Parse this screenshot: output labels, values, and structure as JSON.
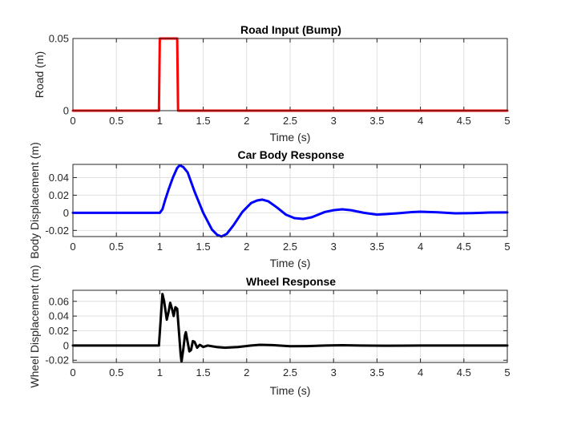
{
  "figure": {
    "background": "#ffffff"
  },
  "chart_data": [
    {
      "type": "line",
      "title": "Road Input (Bump)",
      "xlabel": "Time (s)",
      "ylabel": "Road (m)",
      "xlim": [
        0,
        5
      ],
      "ylim": [
        0,
        0.05
      ],
      "xticks": [
        "0",
        "0.5",
        "1",
        "1.5",
        "2",
        "2.5",
        "3",
        "3.5",
        "4",
        "4.5",
        "5"
      ],
      "yticks": [
        "0",
        "0.05"
      ],
      "grid": true,
      "series": [
        {
          "color": "#ff0000",
          "x": [
            0,
            0.99,
            1.0,
            1.2,
            1.21,
            5
          ],
          "y": [
            0,
            0,
            0.05,
            0.05,
            0,
            0
          ]
        }
      ]
    },
    {
      "type": "line",
      "title": "Car Body Response",
      "xlabel": "Time (s)",
      "ylabel": "Body Displacement (m)",
      "xlim": [
        0,
        5
      ],
      "ylim": [
        -0.027,
        0.055
      ],
      "xticks": [
        "0",
        "0.5",
        "1",
        "1.5",
        "2",
        "2.5",
        "3",
        "3.5",
        "4",
        "4.5",
        "5"
      ],
      "yticks": [
        "-0.02",
        "0",
        "0.02",
        "0.04"
      ],
      "grid": true,
      "series": [
        {
          "color": "#0000ff",
          "x": [
            0,
            1.0,
            1.03,
            1.06,
            1.1,
            1.15,
            1.2,
            1.23,
            1.27,
            1.32,
            1.4,
            1.5,
            1.6,
            1.66,
            1.71,
            1.77,
            1.85,
            1.95,
            2.05,
            2.12,
            2.18,
            2.25,
            2.35,
            2.45,
            2.55,
            2.65,
            2.75,
            2.9,
            3.0,
            3.1,
            3.2,
            3.35,
            3.5,
            3.6,
            3.75,
            3.9,
            4.0,
            4.2,
            4.4,
            4.6,
            4.8,
            5.0
          ],
          "y": [
            0,
            0,
            0.004,
            0.014,
            0.026,
            0.04,
            0.051,
            0.054,
            0.052,
            0.046,
            0.024,
            0.0,
            -0.019,
            -0.025,
            -0.027,
            -0.024,
            -0.014,
            0.001,
            0.011,
            0.014,
            0.015,
            0.013,
            0.006,
            -0.002,
            -0.006,
            -0.007,
            -0.005,
            0.001,
            0.003,
            0.004,
            0.003,
            0.0,
            -0.002,
            -0.0015,
            -0.0005,
            0.0008,
            0.0012,
            0.0005,
            -0.0006,
            -0.0003,
            0.0003,
            0.0004
          ]
        }
      ]
    },
    {
      "type": "line",
      "title": "Wheel Response",
      "xlabel": "Time (s)",
      "ylabel": "Wheel Displacement (m)",
      "xlim": [
        0,
        5
      ],
      "ylim": [
        -0.023,
        0.075
      ],
      "xticks": [
        "0",
        "0.5",
        "1",
        "1.5",
        "2",
        "2.5",
        "3",
        "3.5",
        "4",
        "4.5",
        "5"
      ],
      "yticks": [
        "-0.02",
        "0",
        "0.02",
        "0.04",
        "0.06"
      ],
      "grid": true,
      "series": [
        {
          "color": "#000000",
          "x": [
            0,
            0.99,
            1.01,
            1.03,
            1.05,
            1.08,
            1.1,
            1.12,
            1.14,
            1.16,
            1.18,
            1.2,
            1.22,
            1.24,
            1.25,
            1.27,
            1.29,
            1.3,
            1.32,
            1.34,
            1.36,
            1.38,
            1.4,
            1.43,
            1.46,
            1.5,
            1.55,
            1.65,
            1.75,
            1.9,
            2.05,
            2.15,
            2.3,
            2.5,
            2.7,
            2.9,
            3.1,
            3.3,
            3.6,
            4.0,
            4.5,
            5.0
          ],
          "y": [
            0,
            0,
            0.035,
            0.07,
            0.06,
            0.035,
            0.045,
            0.058,
            0.05,
            0.04,
            0.052,
            0.05,
            0.02,
            -0.012,
            -0.022,
            -0.005,
            0.014,
            0.018,
            0.005,
            -0.008,
            -0.006,
            0.006,
            0.005,
            -0.003,
            0.001,
            -0.002,
            0.0,
            -0.002,
            -0.003,
            -0.002,
            0.0,
            0.001,
            0.0005,
            -0.001,
            -0.0008,
            0.0,
            0.0004,
            0.0,
            -0.0002,
            0.0,
            0.0,
            0.0
          ]
        }
      ]
    }
  ]
}
